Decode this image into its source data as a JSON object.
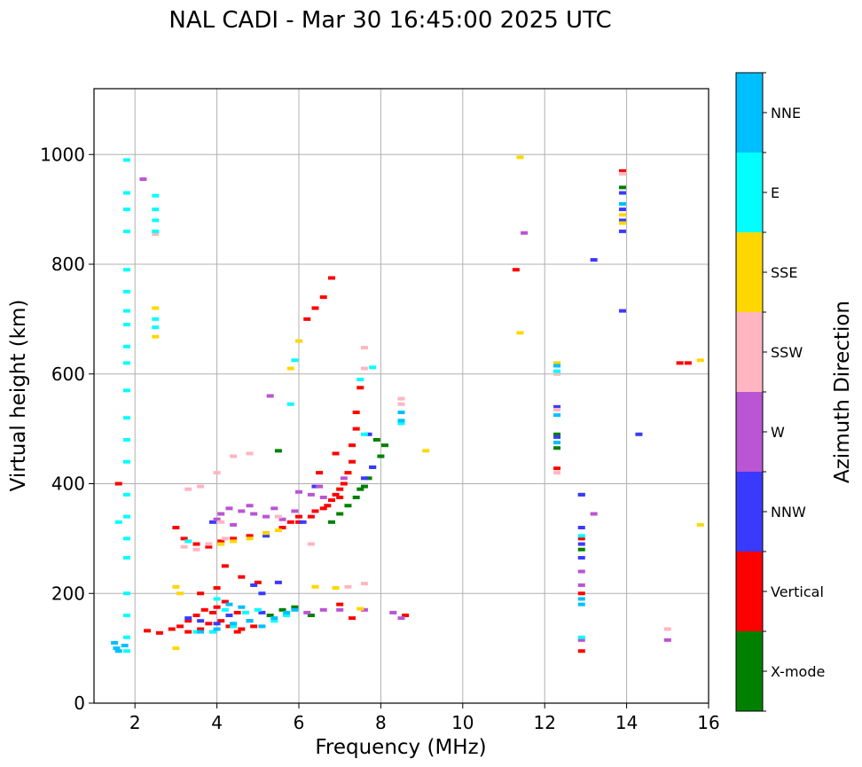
{
  "chart_data": {
    "type": "scatter",
    "title": "NAL CADI - Mar 30 16:45:00 2025 UTC",
    "xlabel": "Frequency (MHz)",
    "ylabel": "Virtual height (km)",
    "xlim": [
      1,
      16
    ],
    "ylim": [
      0,
      1120
    ],
    "xticks": [
      "2",
      "4",
      "6",
      "8",
      "10",
      "12",
      "14",
      "16"
    ],
    "yticks": [
      "0",
      "200",
      "400",
      "600",
      "800",
      "1000"
    ],
    "grid": true,
    "colorbar": {
      "label": "Azimuth Direction",
      "categories": [
        {
          "name": "X-mode",
          "color": "#008000"
        },
        {
          "name": "Vertical",
          "color": "#ff0000"
        },
        {
          "name": "NNW",
          "color": "#3a3aff"
        },
        {
          "name": "W",
          "color": "#ba55d3"
        },
        {
          "name": "SSW",
          "color": "#ffb6c1"
        },
        {
          "name": "SSE",
          "color": "#ffd700"
        },
        {
          "name": "E",
          "color": "#00ffff"
        },
        {
          "name": "NNE",
          "color": "#00bfff"
        }
      ]
    },
    "series": [
      {
        "name": "Vertical",
        "points": [
          [
            1.6,
            400
          ],
          [
            2.3,
            132
          ],
          [
            2.6,
            128
          ],
          [
            2.9,
            135
          ],
          [
            3.1,
            140
          ],
          [
            3.3,
            150
          ],
          [
            3.5,
            160
          ],
          [
            3.7,
            170
          ],
          [
            3.9,
            165
          ],
          [
            4.1,
            150
          ],
          [
            4.3,
            140
          ],
          [
            4.6,
            135
          ],
          [
            4.9,
            140
          ],
          [
            3.6,
            135
          ],
          [
            3.8,
            145
          ],
          [
            4.0,
            175
          ],
          [
            4.2,
            185
          ],
          [
            4.5,
            165
          ],
          [
            3.3,
            130
          ],
          [
            3.9,
            130
          ],
          [
            4.5,
            130
          ],
          [
            3.0,
            320
          ],
          [
            3.2,
            300
          ],
          [
            3.5,
            290
          ],
          [
            3.8,
            285
          ],
          [
            4.1,
            295
          ],
          [
            4.4,
            300
          ],
          [
            4.8,
            305
          ],
          [
            5.2,
            310
          ],
          [
            5.6,
            320
          ],
          [
            6.0,
            330
          ],
          [
            6.3,
            340
          ],
          [
            6.6,
            355
          ],
          [
            6.8,
            370
          ],
          [
            6.9,
            380
          ],
          [
            7.0,
            390
          ],
          [
            7.1,
            400
          ],
          [
            7.2,
            420
          ],
          [
            7.3,
            440
          ],
          [
            7.3,
            470
          ],
          [
            7.4,
            500
          ],
          [
            7.4,
            530
          ],
          [
            7.5,
            575
          ],
          [
            6.2,
            700
          ],
          [
            6.4,
            720
          ],
          [
            6.6,
            740
          ],
          [
            6.8,
            775
          ],
          [
            6.0,
            340
          ],
          [
            6.4,
            350
          ],
          [
            6.7,
            360
          ],
          [
            7.0,
            375
          ],
          [
            5.8,
            330
          ],
          [
            4.2,
            250
          ],
          [
            4.6,
            230
          ],
          [
            5.0,
            220
          ],
          [
            4.0,
            210
          ],
          [
            3.6,
            200
          ],
          [
            7.3,
            155
          ],
          [
            8.6,
            160
          ],
          [
            11.3,
            790
          ],
          [
            12.3,
            428
          ],
          [
            12.9,
            300
          ],
          [
            12.9,
            200
          ],
          [
            12.9,
            95
          ],
          [
            13.9,
            970
          ],
          [
            15.3,
            620
          ],
          [
            15.5,
            620
          ],
          [
            7.0,
            180
          ],
          [
            6.5,
            420
          ],
          [
            6.9,
            455
          ]
        ]
      },
      {
        "name": "X-mode",
        "points": [
          [
            5.3,
            160
          ],
          [
            5.6,
            170
          ],
          [
            5.9,
            175
          ],
          [
            6.3,
            160
          ],
          [
            6.8,
            330
          ],
          [
            7.0,
            345
          ],
          [
            7.2,
            360
          ],
          [
            7.4,
            375
          ],
          [
            7.6,
            395
          ],
          [
            7.7,
            410
          ],
          [
            7.8,
            430
          ],
          [
            8.0,
            450
          ],
          [
            8.1,
            470
          ],
          [
            7.9,
            480
          ],
          [
            7.5,
            390
          ],
          [
            5.5,
            460
          ],
          [
            12.9,
            380
          ],
          [
            12.9,
            280
          ],
          [
            13.9,
            940
          ],
          [
            12.3,
            490
          ],
          [
            12.3,
            465
          ]
        ]
      },
      {
        "name": "NNW",
        "points": [
          [
            3.3,
            155
          ],
          [
            3.6,
            150
          ],
          [
            4.0,
            145
          ],
          [
            4.3,
            160
          ],
          [
            4.8,
            150
          ],
          [
            5.1,
            165
          ],
          [
            3.9,
            330
          ],
          [
            5.2,
            305
          ],
          [
            6.1,
            330
          ],
          [
            6.4,
            395
          ],
          [
            7.6,
            410
          ],
          [
            7.8,
            430
          ],
          [
            4.9,
            215
          ],
          [
            5.1,
            200
          ],
          [
            5.5,
            220
          ],
          [
            7.7,
            490
          ],
          [
            12.3,
            485
          ],
          [
            12.3,
            540
          ],
          [
            12.9,
            380
          ],
          [
            12.9,
            320
          ],
          [
            12.9,
            290
          ],
          [
            12.9,
            265
          ],
          [
            13.9,
            860
          ],
          [
            13.9,
            880
          ],
          [
            13.9,
            900
          ],
          [
            13.9,
            930
          ],
          [
            13.2,
            808
          ],
          [
            13.9,
            715
          ],
          [
            14.3,
            490
          ]
        ]
      },
      {
        "name": "W",
        "points": [
          [
            2.2,
            955
          ],
          [
            4.1,
            345
          ],
          [
            4.3,
            355
          ],
          [
            4.6,
            350
          ],
          [
            4.9,
            345
          ],
          [
            5.2,
            340
          ],
          [
            5.6,
            335
          ],
          [
            5.9,
            350
          ],
          [
            6.3,
            380
          ],
          [
            6.6,
            375
          ],
          [
            4.0,
            335
          ],
          [
            4.4,
            325
          ],
          [
            4.8,
            360
          ],
          [
            5.4,
            355
          ],
          [
            6.0,
            385
          ],
          [
            6.6,
            170
          ],
          [
            7.0,
            170
          ],
          [
            7.6,
            170
          ],
          [
            8.3,
            165
          ],
          [
            8.5,
            155
          ],
          [
            6.2,
            165
          ],
          [
            11.5,
            857
          ],
          [
            13.2,
            345
          ],
          [
            12.9,
            240
          ],
          [
            12.9,
            115
          ],
          [
            15.0,
            115
          ],
          [
            12.9,
            215
          ],
          [
            5.3,
            560
          ],
          [
            6.5,
            395
          ],
          [
            7.1,
            410
          ]
        ]
      },
      {
        "name": "SSW",
        "points": [
          [
            3.2,
            285
          ],
          [
            3.5,
            280
          ],
          [
            3.8,
            290
          ],
          [
            4.2,
            300
          ],
          [
            3.6,
            395
          ],
          [
            4.0,
            420
          ],
          [
            4.4,
            450
          ],
          [
            4.8,
            455
          ],
          [
            3.3,
            390
          ],
          [
            6.3,
            290
          ],
          [
            5.5,
            340
          ],
          [
            7.2,
            212
          ],
          [
            7.6,
            218
          ],
          [
            8.5,
            555
          ],
          [
            8.5,
            545
          ],
          [
            7.6,
            648
          ],
          [
            7.6,
            610
          ],
          [
            12.3,
            420
          ],
          [
            12.3,
            535
          ],
          [
            12.3,
            600
          ],
          [
            15.0,
            135
          ],
          [
            13.9,
            965
          ],
          [
            2.5,
            855
          ],
          [
            4.1,
            330
          ]
        ]
      },
      {
        "name": "SSE",
        "points": [
          [
            3.0,
            212
          ],
          [
            3.0,
            100
          ],
          [
            2.5,
            720
          ],
          [
            2.5,
            668
          ],
          [
            4.4,
            295
          ],
          [
            4.8,
            300
          ],
          [
            5.2,
            310
          ],
          [
            5.5,
            315
          ],
          [
            4.1,
            290
          ],
          [
            6.0,
            660
          ],
          [
            5.8,
            610
          ],
          [
            6.4,
            212
          ],
          [
            6.9,
            210
          ],
          [
            7.5,
            172
          ],
          [
            9.1,
            460
          ],
          [
            11.4,
            995
          ],
          [
            11.4,
            675
          ],
          [
            12.3,
            620
          ],
          [
            13.9,
            875
          ],
          [
            13.9,
            890
          ],
          [
            15.8,
            625
          ],
          [
            15.8,
            325
          ],
          [
            3.1,
            200
          ]
        ]
      },
      {
        "name": "E",
        "points": [
          [
            1.8,
            990
          ],
          [
            1.8,
            930
          ],
          [
            1.8,
            900
          ],
          [
            1.8,
            860
          ],
          [
            1.8,
            790
          ],
          [
            1.8,
            750
          ],
          [
            1.8,
            715
          ],
          [
            1.8,
            690
          ],
          [
            1.8,
            650
          ],
          [
            1.8,
            620
          ],
          [
            1.8,
            570
          ],
          [
            1.8,
            520
          ],
          [
            1.8,
            480
          ],
          [
            1.8,
            440
          ],
          [
            1.8,
            380
          ],
          [
            1.8,
            340
          ],
          [
            1.8,
            300
          ],
          [
            1.8,
            265
          ],
          [
            1.8,
            200
          ],
          [
            1.8,
            160
          ],
          [
            1.8,
            120
          ],
          [
            1.8,
            95
          ],
          [
            1.6,
            330
          ],
          [
            2.5,
            925
          ],
          [
            2.5,
            900
          ],
          [
            2.5,
            880
          ],
          [
            2.5,
            860
          ],
          [
            2.5,
            700
          ],
          [
            2.5,
            685
          ],
          [
            4.0,
            190
          ],
          [
            4.2,
            170
          ],
          [
            4.7,
            165
          ],
          [
            5.0,
            170
          ],
          [
            5.4,
            150
          ],
          [
            5.7,
            160
          ],
          [
            4.4,
            140
          ],
          [
            3.9,
            130
          ],
          [
            3.5,
            130
          ],
          [
            3.3,
            295
          ],
          [
            5.8,
            545
          ],
          [
            5.9,
            625
          ],
          [
            7.5,
            590
          ],
          [
            7.6,
            490
          ],
          [
            8.5,
            510
          ],
          [
            12.3,
            605
          ],
          [
            12.9,
            120
          ],
          [
            12.9,
            305
          ],
          [
            7.8,
            612
          ]
        ]
      },
      {
        "name": "NNE",
        "points": [
          [
            1.5,
            110
          ],
          [
            1.55,
            100
          ],
          [
            1.6,
            95
          ],
          [
            1.75,
            105
          ],
          [
            3.6,
            130
          ],
          [
            4.0,
            135
          ],
          [
            4.4,
            145
          ],
          [
            4.8,
            150
          ],
          [
            5.1,
            140
          ],
          [
            5.4,
            155
          ],
          [
            5.7,
            165
          ],
          [
            5.9,
            170
          ],
          [
            4.6,
            175
          ],
          [
            4.3,
            180
          ],
          [
            12.3,
            615
          ],
          [
            12.3,
            525
          ],
          [
            12.3,
            475
          ],
          [
            12.9,
            180
          ],
          [
            12.9,
            190
          ],
          [
            13.9,
            910
          ],
          [
            8.5,
            530
          ],
          [
            8.5,
            515
          ]
        ]
      }
    ]
  }
}
